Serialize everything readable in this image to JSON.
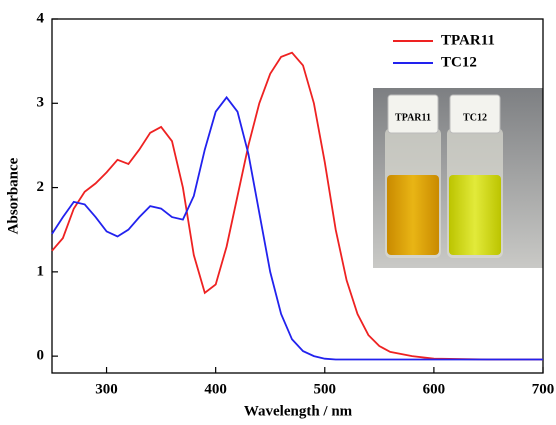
{
  "chart_data": {
    "type": "line",
    "x_label": "Wavelength / nm",
    "y_label": "Absorbance",
    "x": [
      250,
      260,
      270,
      280,
      290,
      300,
      310,
      320,
      330,
      340,
      350,
      360,
      370,
      380,
      390,
      400,
      410,
      420,
      430,
      440,
      450,
      460,
      470,
      480,
      490,
      500,
      510,
      520,
      530,
      540,
      550,
      560,
      580,
      600,
      650,
      700
    ],
    "series": [
      {
        "name": "TPAR11",
        "color": "#ee2222",
        "values": [
          1.25,
          1.4,
          1.75,
          1.95,
          2.05,
          2.18,
          2.33,
          2.28,
          2.45,
          2.65,
          2.72,
          2.55,
          2.0,
          1.2,
          0.75,
          0.85,
          1.3,
          1.9,
          2.5,
          3.0,
          3.35,
          3.55,
          3.6,
          3.45,
          3.0,
          2.3,
          1.5,
          0.9,
          0.5,
          0.25,
          0.12,
          0.05,
          0.0,
          -0.03,
          -0.04,
          -0.04
        ]
      },
      {
        "name": "TC12",
        "color": "#2222ee",
        "values": [
          1.45,
          1.65,
          1.83,
          1.8,
          1.65,
          1.48,
          1.42,
          1.5,
          1.65,
          1.78,
          1.75,
          1.65,
          1.62,
          1.9,
          2.45,
          2.9,
          3.07,
          2.9,
          2.4,
          1.7,
          1.0,
          0.5,
          0.2,
          0.06,
          0.0,
          -0.03,
          -0.04,
          -0.04,
          -0.04,
          -0.04,
          -0.04,
          -0.04,
          -0.04,
          -0.04,
          -0.04,
          -0.04
        ]
      }
    ],
    "xlim": [
      250,
      700
    ],
    "xticks": [
      300,
      400,
      500,
      600,
      700
    ],
    "ylim": [
      -0.2,
      4
    ],
    "yticks": [
      0,
      1,
      2,
      3,
      4
    ],
    "legend": "upper right",
    "annotations": [
      "TPAR11",
      "TC12"
    ]
  }
}
